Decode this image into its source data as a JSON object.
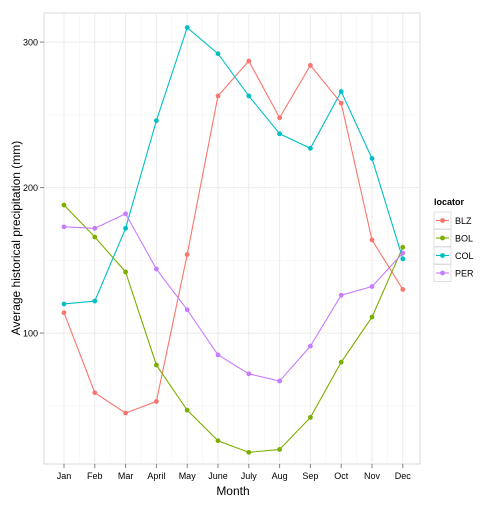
{
  "chart_data": {
    "type": "line",
    "title": "",
    "xlabel": "Month",
    "ylabel": "Average historical precipitation (mm)",
    "categories": [
      "Jan",
      "Feb",
      "Mar",
      "April",
      "May",
      "June",
      "July",
      "Aug",
      "Sep",
      "Oct",
      "Nov",
      "Dec"
    ],
    "ylim": [
      10,
      320
    ],
    "yticks": [
      100,
      200,
      300
    ],
    "grid": true,
    "legend": {
      "title": "locator",
      "position": "right"
    },
    "series": [
      {
        "name": "BLZ",
        "color": "#F8766D",
        "values": [
          114,
          59,
          45,
          53,
          154,
          263,
          287,
          248,
          284,
          258,
          164,
          130
        ]
      },
      {
        "name": "BOL",
        "color": "#7CAE00",
        "values": [
          188,
          166,
          142,
          78,
          47,
          26,
          18,
          20,
          42,
          80,
          111,
          159
        ]
      },
      {
        "name": "COL",
        "color": "#00BFC4",
        "values": [
          120,
          122,
          172,
          246,
          310,
          292,
          263,
          237,
          227,
          266,
          220,
          151
        ]
      },
      {
        "name": "PER",
        "color": "#C77CFF",
        "values": [
          173,
          172,
          182,
          144,
          116,
          85,
          72,
          67,
          91,
          126,
          132,
          155
        ]
      }
    ]
  }
}
